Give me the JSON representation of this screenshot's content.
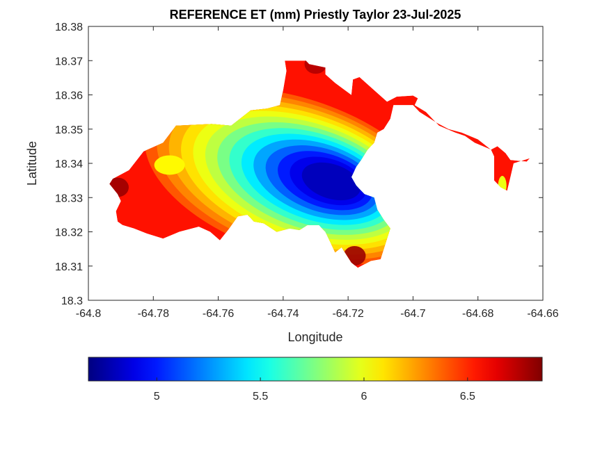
{
  "chart_data": {
    "type": "heatmap",
    "title": "REFERENCE ET (mm) Priestly Taylor 23-Jul-2025",
    "xlabel": "Longitude",
    "ylabel": "Latitude",
    "xlim": [
      -64.8,
      -64.66
    ],
    "ylim": [
      18.3,
      18.38
    ],
    "x_ticks": [
      -64.8,
      -64.78,
      -64.76,
      -64.74,
      -64.72,
      -64.7,
      -64.68,
      -64.66
    ],
    "x_tick_labels": [
      "-64.8",
      "-64.78",
      "-64.76",
      "-64.74",
      "-64.72",
      "-64.7",
      "-64.68",
      "-64.66"
    ],
    "y_ticks": [
      18.3,
      18.31,
      18.32,
      18.33,
      18.34,
      18.35,
      18.36,
      18.37,
      18.38
    ],
    "y_tick_labels": [
      "18.3",
      "18.31",
      "18.32",
      "18.33",
      "18.34",
      "18.35",
      "18.36",
      "18.37",
      "18.38"
    ],
    "colormap": "jet",
    "color_range": [
      4.67,
      6.86
    ],
    "colorbar_ticks": [
      5,
      5.5,
      6,
      6.5
    ],
    "colorbar_tick_labels": [
      "5",
      "5.5",
      "6",
      "6.5"
    ],
    "colorbar_position": "bottom",
    "grid": false,
    "field": {
      "minimum": {
        "lon": -64.72,
        "lat": 18.333,
        "value": 4.7
      },
      "maximum_regions": [
        {
          "lon": -64.791,
          "lat": 18.333,
          "value": 6.8
        },
        {
          "lon": -64.73,
          "lat": 18.369,
          "value": 6.75
        },
        {
          "lon": -64.718,
          "lat": 18.313,
          "value": 6.8
        }
      ],
      "mean_value": 6.3
    },
    "coastline": [
      [
        -64.7925,
        18.3355
      ],
      [
        -64.7875,
        18.338
      ],
      [
        -64.783,
        18.3435
      ],
      [
        -64.777,
        18.346
      ],
      [
        -64.773,
        18.351
      ],
      [
        -64.762,
        18.3515
      ],
      [
        -64.756,
        18.351
      ],
      [
        -64.75,
        18.3555
      ],
      [
        -64.745,
        18.356
      ],
      [
        -64.741,
        18.357
      ],
      [
        -64.74,
        18.3615
      ],
      [
        -64.739,
        18.367
      ],
      [
        -64.7395,
        18.37
      ],
      [
        -64.733,
        18.37
      ],
      [
        -64.732,
        18.369
      ],
      [
        -64.727,
        18.368
      ],
      [
        -64.727,
        18.366
      ],
      [
        -64.724,
        18.3635
      ],
      [
        -64.719,
        18.36
      ],
      [
        -64.7185,
        18.3645
      ],
      [
        -64.7165,
        18.3652
      ],
      [
        -64.708,
        18.358
      ],
      [
        -64.705,
        18.3595
      ],
      [
        -64.7,
        18.3598
      ],
      [
        -64.6985,
        18.359
      ],
      [
        -64.6995,
        18.357
      ],
      [
        -64.696,
        18.355
      ],
      [
        -64.6935,
        18.3525
      ],
      [
        -64.692,
        18.351
      ],
      [
        -64.687,
        18.349
      ],
      [
        -64.684,
        18.348
      ],
      [
        -64.681,
        18.346
      ],
      [
        -64.676,
        18.344
      ],
      [
        -64.674,
        18.345
      ],
      [
        -64.6715,
        18.343
      ],
      [
        -64.67,
        18.341
      ],
      [
        -64.665,
        18.3405
      ],
      [
        -64.664,
        18.3415
      ],
      [
        -64.669,
        18.34
      ],
      [
        -64.67,
        18.336
      ],
      [
        -64.671,
        18.332
      ],
      [
        -64.673,
        18.333
      ],
      [
        -64.675,
        18.335
      ],
      [
        -64.675,
        18.342
      ],
      [
        -64.676,
        18.344
      ],
      [
        -64.68,
        18.347
      ],
      [
        -64.685,
        18.349
      ],
      [
        -64.689,
        18.35
      ],
      [
        -64.693,
        18.352
      ],
      [
        -64.698,
        18.355
      ],
      [
        -64.7,
        18.357
      ],
      [
        -64.706,
        18.357
      ],
      [
        -64.707,
        18.353
      ],
      [
        -64.709,
        18.35
      ],
      [
        -64.711,
        18.349
      ],
      [
        -64.712,
        18.346
      ],
      [
        -64.714,
        18.344
      ],
      [
        -64.716,
        18.341
      ],
      [
        -64.7175,
        18.339
      ],
      [
        -64.719,
        18.336
      ],
      [
        -64.7175,
        18.3335
      ],
      [
        -64.715,
        18.331
      ],
      [
        -64.712,
        18.33
      ],
      [
        -64.711,
        18.3265
      ],
      [
        -64.709,
        18.3235
      ],
      [
        -64.707,
        18.321
      ],
      [
        -64.708,
        18.318
      ],
      [
        -64.709,
        18.315
      ],
      [
        -64.71,
        18.312
      ],
      [
        -64.713,
        18.3115
      ],
      [
        -64.717,
        18.3095
      ],
      [
        -64.719,
        18.311
      ],
      [
        -64.722,
        18.3155
      ],
      [
        -64.724,
        18.314
      ],
      [
        -64.726,
        18.318
      ],
      [
        -64.727,
        18.32
      ],
      [
        -64.729,
        18.322
      ],
      [
        -64.7325,
        18.322
      ],
      [
        -64.735,
        18.3205
      ],
      [
        -64.738,
        18.321
      ],
      [
        -64.742,
        18.32
      ],
      [
        -64.746,
        18.3225
      ],
      [
        -64.749,
        18.323
      ],
      [
        -64.751,
        18.325
      ],
      [
        -64.754,
        18.3245
      ],
      [
        -64.757,
        18.3205
      ],
      [
        -64.7595,
        18.3175
      ],
      [
        -64.7625,
        18.32
      ],
      [
        -64.766,
        18.3215
      ],
      [
        -64.772,
        18.32
      ],
      [
        -64.777,
        18.318
      ],
      [
        -64.782,
        18.3195
      ],
      [
        -64.786,
        18.321
      ],
      [
        -64.7895,
        18.322
      ],
      [
        -64.791,
        18.323
      ],
      [
        -64.7915,
        18.326
      ],
      [
        -64.79,
        18.329
      ],
      [
        -64.791,
        18.331
      ],
      [
        -64.7935,
        18.334
      ]
    ]
  }
}
